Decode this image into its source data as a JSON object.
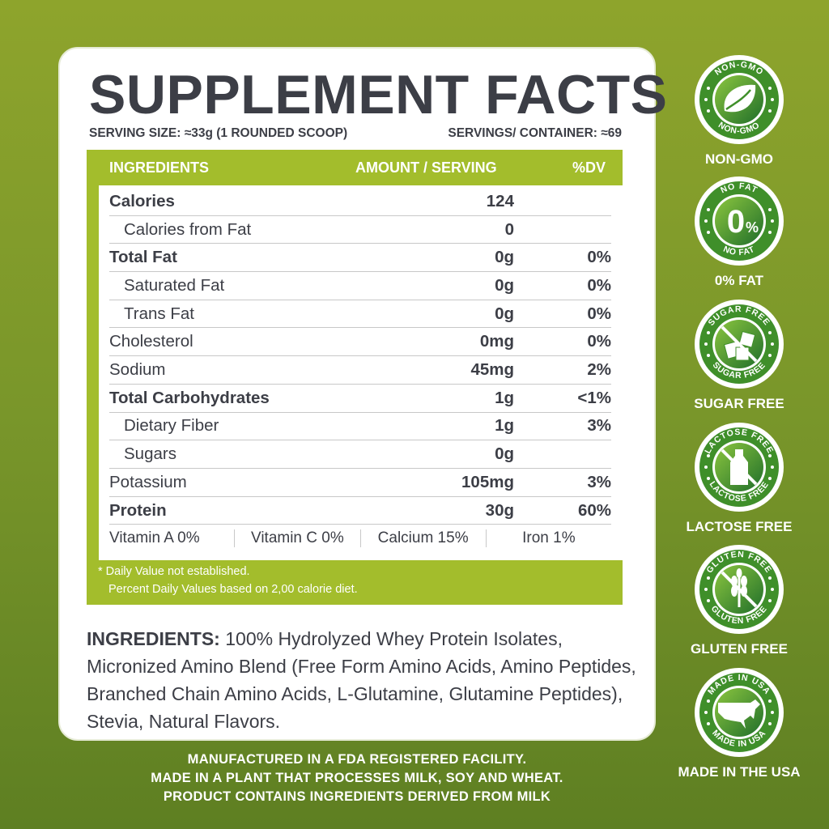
{
  "title": "SUPPLEMENT FACTS",
  "serving_size": "SERVING SIZE: ≈33g (1 ROUNDED SCOOP)",
  "servings_per_container": "SERVINGS/ CONTAINER: ≈69",
  "headers": {
    "ingredients": "INGREDIENTS",
    "amount": "AMOUNT / SERVING",
    "dv": "%DV"
  },
  "rows": [
    {
      "name": "Calories",
      "amount": "124",
      "dv": ""
    },
    {
      "name": "Calories from Fat",
      "amount": "0",
      "dv": ""
    },
    {
      "name": "Total Fat",
      "amount": "0g",
      "dv": "0%"
    },
    {
      "name": "Saturated Fat",
      "amount": "0g",
      "dv": "0%"
    },
    {
      "name": "Trans Fat",
      "amount": "0g",
      "dv": "0%"
    },
    {
      "name": "Cholesterol",
      "amount": "0mg",
      "dv": "0%"
    },
    {
      "name": "Sodium",
      "amount": "45mg",
      "dv": "2%"
    },
    {
      "name": "Total Carbohydrates",
      "amount": "1g",
      "dv": "<1%"
    },
    {
      "name": "Dietary Fiber",
      "amount": "1g",
      "dv": "3%"
    },
    {
      "name": "Sugars",
      "amount": "0g",
      "dv": ""
    },
    {
      "name": "Potassium",
      "amount": "105mg",
      "dv": "3%"
    },
    {
      "name": "Protein",
      "amount": "30g",
      "dv": "60%"
    }
  ],
  "vitamins": [
    "Vitamin A 0%",
    "Vitamin C 0%",
    "Calcium 15%",
    "Iron 1%"
  ],
  "footnotes": [
    "* Daily Value not established.",
    "Percent Daily Values based on 2,00 calorie diet."
  ],
  "ingredients": {
    "label": "INGREDIENTS:",
    "text": " 100% Hydrolyzed Whey Protein Isolates, Micronized Amino Blend (Free Form Amino Acids, Amino Peptides, Branched Chain Amino Acids, L-Glutamine, Glutamine Peptides), Stevia, Natural Flavors."
  },
  "badges": [
    {
      "ring": "NON-GMO",
      "label": "NON-GMO",
      "icon": "leaf-icon"
    },
    {
      "ring": "NO FAT",
      "label": "0% FAT",
      "icon": "zero-percent-icon",
      "center": "0%"
    },
    {
      "ring": "SUGAR FREE",
      "label": "SUGAR FREE",
      "icon": "sugar-cubes-icon"
    },
    {
      "ring": "LACTOSE FREE",
      "label": "LACTOSE FREE",
      "icon": "milk-bottle-icon"
    },
    {
      "ring": "GLUTEN FREE",
      "label": "GLUTEN FREE",
      "icon": "wheat-icon"
    },
    {
      "ring": "MADE IN USA",
      "label": "MADE IN THE USA",
      "icon": "usa-map-icon"
    }
  ],
  "bottom_lines": [
    "MANUFACTURED IN A FDA REGISTERED FACILITY.",
    "MADE IN A PLANT THAT PROCESSES MILK, SOY AND WHEAT.",
    "PRODUCT CONTAINS INGREDIENTS DERIVED FROM MILK"
  ],
  "colors": {
    "table_green": "#a3bd2c",
    "text_dark": "#3c3e46",
    "badge_green": "#3f8f2a"
  }
}
